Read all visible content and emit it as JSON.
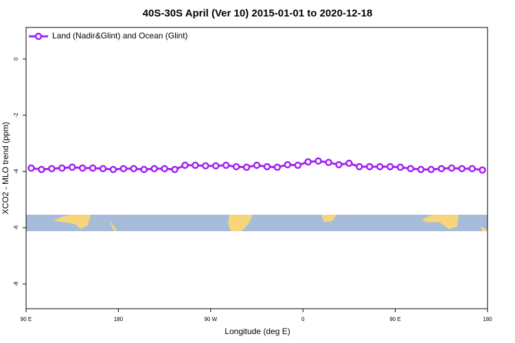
{
  "chart_data": {
    "type": "line",
    "title": "40S-30S April (Ver 10)   2015-01-01 to 2020-12-18",
    "x_label": "Longitude (deg E)",
    "y_label": "XCO2 - MLO trend (ppm)",
    "x": [
      95,
      105,
      115,
      125,
      135,
      145,
      155,
      165,
      175,
      185,
      195,
      205,
      215,
      225,
      235,
      245,
      255,
      265,
      275,
      285,
      295,
      305,
      315,
      325,
      335,
      345,
      355,
      365,
      375,
      385,
      395,
      405,
      415,
      425,
      435,
      445,
      455,
      465,
      475,
      485,
      495,
      505,
      515,
      525,
      535
    ],
    "series": [
      {
        "name": "Land (Nadir&Glint) and Ocean (Glint)",
        "color": "#a020f0",
        "values": [
          -3.88,
          -3.93,
          -3.9,
          -3.88,
          -3.85,
          -3.88,
          -3.88,
          -3.9,
          -3.93,
          -3.9,
          -3.9,
          -3.93,
          -3.9,
          -3.9,
          -3.93,
          -3.78,
          -3.78,
          -3.8,
          -3.8,
          -3.78,
          -3.83,
          -3.85,
          -3.78,
          -3.83,
          -3.85,
          -3.76,
          -3.78,
          -3.66,
          -3.63,
          -3.68,
          -3.76,
          -3.71,
          -3.83,
          -3.83,
          -3.83,
          -3.83,
          -3.85,
          -3.9,
          -3.93,
          -3.93,
          -3.9,
          -3.88,
          -3.9,
          -3.9,
          -3.95
        ]
      }
    ],
    "xlim": [
      90,
      540
    ],
    "xticks": [
      {
        "value": 90,
        "label": "90 E"
      },
      180,
      {
        "value": 270,
        "label": "90 W"
      },
      {
        "value": 360,
        "label": "0"
      },
      {
        "value": 450,
        "label": "90 E"
      },
      {
        "value": 540,
        "label": "180"
      }
    ],
    "ylim": [
      -8.88,
      1.12
    ],
    "yticks": [
      0,
      -2,
      -4,
      -6,
      -8
    ],
    "legend": "top-left"
  }
}
